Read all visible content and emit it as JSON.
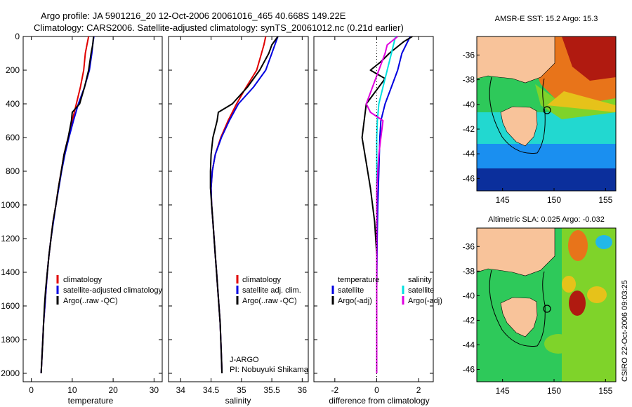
{
  "header": {
    "line1": "Argo profile: JA 5901216_20 12-Oct-2006 20061016_465 40.668S 149.22E",
    "line2": "Climatology: CARS2006. Satellite-adjusted climatology: synTS_20061012.nc (0.21d earlier)"
  },
  "side_text": "CSIRO 22-Oct-2006 09:03:25",
  "float_note": {
    "line1": "J-ARGO",
    "line2": "PI: Nobuyuki Shikama"
  },
  "colors": {
    "climatology": "#e00000",
    "satellite": "#0000e0",
    "argo": "#000000",
    "sat_cyan": "#00e0e0",
    "argo_magenta": "#e000e0",
    "land": "#f8c39a"
  },
  "chart_data": [
    {
      "type": "line",
      "id": "temperature",
      "xlabel": "temperature",
      "ylabel": "",
      "xlim": [
        -2,
        32
      ],
      "ylim": [
        2050,
        0
      ],
      "xticks": [
        0,
        10,
        20,
        30
      ],
      "yticks": [
        0,
        200,
        400,
        600,
        800,
        1000,
        1200,
        1400,
        1600,
        1800,
        2000
      ],
      "legend": [
        "climatology",
        "satellite-adjusted climatology",
        "Argo(..raw -QC)"
      ],
      "legend_placement": "lower-right",
      "series": [
        {
          "name": "climatology",
          "color": "red",
          "points": [
            [
              14.0,
              0
            ],
            [
              13.6,
              50
            ],
            [
              13.2,
              100
            ],
            [
              12.8,
              200
            ],
            [
              12.0,
              300
            ],
            [
              11.0,
              400
            ],
            [
              10.0,
              500
            ],
            [
              9.0,
              600
            ],
            [
              8.0,
              700
            ],
            [
              7.3,
              800
            ],
            [
              6.6,
              900
            ],
            [
              6.0,
              1000
            ],
            [
              5.3,
              1100
            ],
            [
              4.8,
              1200
            ],
            [
              4.3,
              1300
            ],
            [
              3.9,
              1400
            ],
            [
              3.6,
              1500
            ],
            [
              3.3,
              1600
            ],
            [
              3.0,
              1700
            ],
            [
              2.8,
              1800
            ],
            [
              2.6,
              1900
            ],
            [
              2.4,
              2000
            ]
          ]
        },
        {
          "name": "satellite-adjusted climatology",
          "color": "blue",
          "points": [
            [
              15.3,
              0
            ],
            [
              15.0,
              50
            ],
            [
              14.8,
              100
            ],
            [
              14.2,
              200
            ],
            [
              13.0,
              300
            ],
            [
              11.5,
              400
            ],
            [
              10.3,
              500
            ],
            [
              9.2,
              600
            ],
            [
              8.2,
              700
            ],
            [
              7.4,
              800
            ],
            [
              6.7,
              900
            ],
            [
              6.0,
              1000
            ],
            [
              5.4,
              1100
            ],
            [
              4.8,
              1200
            ],
            [
              4.3,
              1300
            ],
            [
              3.9,
              1400
            ],
            [
              3.6,
              1500
            ],
            [
              3.3,
              1600
            ],
            [
              3.0,
              1700
            ],
            [
              2.8,
              1800
            ],
            [
              2.6,
              1900
            ],
            [
              2.4,
              2000
            ]
          ]
        },
        {
          "name": "Argo(..raw -QC)",
          "color": "black",
          "points": [
            [
              15.2,
              0
            ],
            [
              15.0,
              50
            ],
            [
              14.6,
              100
            ],
            [
              14.0,
              200
            ],
            [
              13.0,
              300
            ],
            [
              11.8,
              400
            ],
            [
              10.0,
              450
            ],
            [
              9.8,
              500
            ],
            [
              9.0,
              600
            ],
            [
              8.0,
              700
            ],
            [
              7.3,
              800
            ],
            [
              6.6,
              900
            ],
            [
              6.0,
              1000
            ],
            [
              5.3,
              1100
            ],
            [
              4.8,
              1200
            ],
            [
              4.3,
              1300
            ],
            [
              3.9,
              1400
            ],
            [
              3.5,
              1500
            ],
            [
              3.2,
              1600
            ],
            [
              3.0,
              1700
            ],
            [
              2.8,
              1800
            ],
            [
              2.6,
              1900
            ],
            [
              2.4,
              2000
            ]
          ]
        }
      ]
    },
    {
      "type": "line",
      "id": "salinity",
      "xlabel": "salinity",
      "ylabel": "",
      "xlim": [
        33.8,
        36.1
      ],
      "ylim": [
        2050,
        0
      ],
      "xticks": [
        34,
        34.5,
        35,
        35.5,
        36
      ],
      "yticks": [],
      "legend": [
        "climatology",
        "satellite adj. clim.",
        "Argo(..raw -QC)"
      ],
      "legend_placement": "lower-right",
      "series": [
        {
          "name": "climatology",
          "color": "red",
          "points": [
            [
              35.4,
              0
            ],
            [
              35.37,
              50
            ],
            [
              35.33,
              100
            ],
            [
              35.25,
              200
            ],
            [
              35.08,
              300
            ],
            [
              34.92,
              400
            ],
            [
              34.78,
              500
            ],
            [
              34.66,
              600
            ],
            [
              34.57,
              700
            ],
            [
              34.52,
              800
            ],
            [
              34.5,
              900
            ],
            [
              34.51,
              1000
            ],
            [
              34.53,
              1100
            ],
            [
              34.55,
              1200
            ],
            [
              34.57,
              1300
            ],
            [
              34.59,
              1400
            ],
            [
              34.61,
              1500
            ],
            [
              34.63,
              1600
            ],
            [
              34.65,
              1700
            ],
            [
              34.66,
              1800
            ],
            [
              34.67,
              1900
            ],
            [
              34.68,
              2000
            ]
          ]
        },
        {
          "name": "satellite adj. clim.",
          "color": "blue",
          "points": [
            [
              35.6,
              0
            ],
            [
              35.55,
              50
            ],
            [
              35.5,
              100
            ],
            [
              35.4,
              200
            ],
            [
              35.2,
              300
            ],
            [
              34.95,
              400
            ],
            [
              34.8,
              500
            ],
            [
              34.67,
              600
            ],
            [
              34.57,
              700
            ],
            [
              34.52,
              800
            ],
            [
              34.5,
              900
            ],
            [
              34.51,
              1000
            ],
            [
              34.53,
              1100
            ],
            [
              34.55,
              1200
            ],
            [
              34.57,
              1300
            ],
            [
              34.59,
              1400
            ],
            [
              34.61,
              1500
            ],
            [
              34.63,
              1600
            ],
            [
              34.65,
              1700
            ],
            [
              34.66,
              1800
            ],
            [
              34.67,
              1900
            ],
            [
              34.68,
              2000
            ]
          ]
        },
        {
          "name": "Argo(..raw -QC)",
          "color": "black",
          "points": [
            [
              35.6,
              0
            ],
            [
              35.5,
              50
            ],
            [
              35.45,
              100
            ],
            [
              35.3,
              200
            ],
            [
              35.1,
              300
            ],
            [
              34.85,
              400
            ],
            [
              34.62,
              450
            ],
            [
              34.6,
              500
            ],
            [
              34.53,
              600
            ],
            [
              34.5,
              700
            ],
            [
              34.49,
              800
            ],
            [
              34.49,
              900
            ],
            [
              34.51,
              1000
            ],
            [
              34.53,
              1100
            ],
            [
              34.55,
              1200
            ],
            [
              34.57,
              1300
            ],
            [
              34.59,
              1400
            ],
            [
              34.61,
              1500
            ],
            [
              34.63,
              1600
            ],
            [
              34.65,
              1700
            ],
            [
              34.66,
              1800
            ],
            [
              34.67,
              1900
            ],
            [
              34.68,
              2000
            ]
          ]
        }
      ]
    },
    {
      "type": "line",
      "id": "difference",
      "xlabel": "difference from climatology",
      "ylabel": "",
      "xlim": [
        -3.0,
        2.7
      ],
      "ylim": [
        2050,
        0
      ],
      "xticks": [
        -2,
        0,
        2
      ],
      "yticks": [],
      "legend_headers": [
        "temperature",
        "salinity"
      ],
      "legend": [
        "satellite",
        "Argo(-adj)",
        "satellite",
        "Argo(-adj)"
      ],
      "legend_placement": "lower-right",
      "series": [
        {
          "name": "satellite",
          "group": "temperature",
          "color": "blue",
          "points": [
            [
              1.6,
              0
            ],
            [
              1.4,
              50
            ],
            [
              1.2,
              100
            ],
            [
              1.0,
              200
            ],
            [
              0.7,
              300
            ],
            [
              0.4,
              400
            ],
            [
              0.2,
              500
            ],
            [
              0.15,
              600
            ],
            [
              0.1,
              800
            ],
            [
              0.05,
              1000
            ],
            [
              0.02,
              1200
            ],
            [
              0,
              1500
            ],
            [
              0,
              2000
            ]
          ]
        },
        {
          "name": "Argo(-adj)",
          "group": "temperature",
          "color": "black",
          "points": [
            [
              1.7,
              0
            ],
            [
              1.3,
              30
            ],
            [
              1.0,
              60
            ],
            [
              0.6,
              100
            ],
            [
              0.2,
              150
            ],
            [
              -0.3,
              200
            ],
            [
              0.4,
              250
            ],
            [
              -0.5,
              400
            ],
            [
              -0.6,
              500
            ],
            [
              -0.7,
              600
            ],
            [
              -0.5,
              750
            ],
            [
              -0.3,
              900
            ],
            [
              -0.1,
              1100
            ],
            [
              0,
              1300
            ],
            [
              0,
              2000
            ]
          ]
        },
        {
          "name": "satellite",
          "group": "salinity",
          "color": "cyan",
          "points": [
            [
              0.9,
              0
            ],
            [
              0.8,
              50
            ],
            [
              0.7,
              100
            ],
            [
              0.5,
              200
            ],
            [
              0.3,
              300
            ],
            [
              0.1,
              400
            ],
            [
              0.03,
              500
            ],
            [
              0,
              600
            ],
            [
              0,
              2000
            ]
          ]
        },
        {
          "name": "Argo(-adj)",
          "group": "salinity",
          "color": "magenta",
          "points": [
            [
              1.0,
              0
            ],
            [
              0.5,
              50
            ],
            [
              0.4,
              100
            ],
            [
              0.1,
              200
            ],
            [
              -0.2,
              300
            ],
            [
              -0.5,
              400
            ],
            [
              -0.3,
              450
            ],
            [
              0.3,
              500
            ],
            [
              0.2,
              600
            ],
            [
              0.1,
              700
            ],
            [
              0,
              900
            ],
            [
              0,
              2000
            ]
          ]
        }
      ]
    },
    {
      "type": "heatmap",
      "id": "sst-map",
      "title": "AMSR-E SST: 15.2 Argo: 15.3",
      "xlim": [
        142.5,
        156
      ],
      "ylim": [
        -47,
        -34.5
      ],
      "xticks": [
        145,
        150,
        155
      ],
      "yticks": [
        -36,
        -38,
        -40,
        -42,
        -44,
        -46
      ],
      "float_position": [
        149.22,
        -40.668
      ],
      "color_gradient": [
        "#0b2f9c",
        "#1a8ff0",
        "#22d8d0",
        "#2ec95a",
        "#7fd32a",
        "#e6c21a",
        "#e8741a",
        "#b01a10"
      ]
    },
    {
      "type": "heatmap",
      "id": "sla-map",
      "title": "Altimetric SLA: 0.025 Argo: -0.032",
      "xlim": [
        142.5,
        156
      ],
      "ylim": [
        -47,
        -34.5
      ],
      "xticks": [
        145,
        150,
        155
      ],
      "yticks": [
        -36,
        -38,
        -40,
        -42,
        -44,
        -46
      ],
      "float_position": [
        149.22,
        -40.668
      ],
      "color_gradient": [
        "#22b8e8",
        "#2ec95a",
        "#7fd32a",
        "#e6c21a",
        "#e8741a",
        "#b01a10"
      ]
    }
  ]
}
